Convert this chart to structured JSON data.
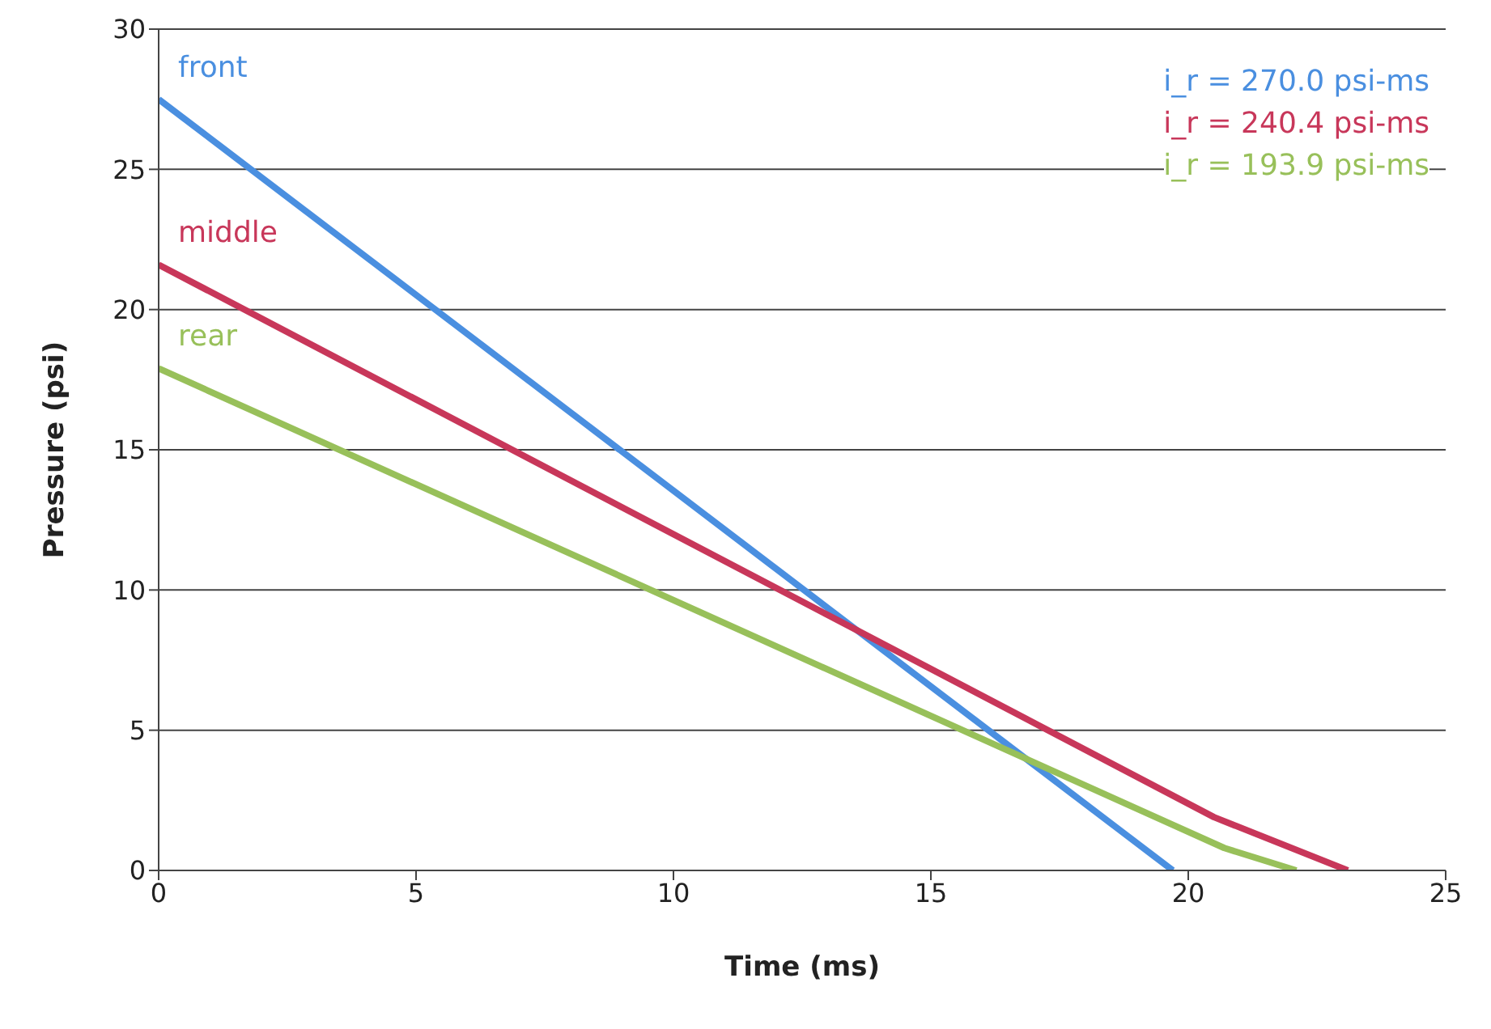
{
  "chart_data": {
    "type": "line",
    "xlabel": "Time (ms)",
    "ylabel": "Pressure (psi)",
    "xlim": [
      0,
      25
    ],
    "xticks": [
      0,
      5,
      10,
      15,
      20,
      25
    ],
    "ylim": [
      0,
      30
    ],
    "yticks": [
      0,
      5,
      10,
      15,
      20,
      25,
      30
    ],
    "grid": "y",
    "marker": "none",
    "line_style": "solid",
    "series": [
      {
        "name": "front",
        "color": "#4a8fe0",
        "x": [
          0,
          19.7
        ],
        "values": [
          27.5,
          0
        ]
      },
      {
        "name": "middle",
        "color": "#c8375a",
        "x": [
          0,
          20.5,
          23.1
        ],
        "values": [
          21.6,
          1.9,
          0
        ]
      },
      {
        "name": "rear",
        "color": "#98c05a",
        "x": [
          0,
          20.7,
          22.1
        ],
        "values": [
          17.9,
          0.8,
          0
        ]
      }
    ],
    "annotations": [
      "i_r = 270.0 psi-ms",
      "i_r = 240.4 psi-ms",
      "i_r = 193.9 psi-ms"
    ]
  }
}
